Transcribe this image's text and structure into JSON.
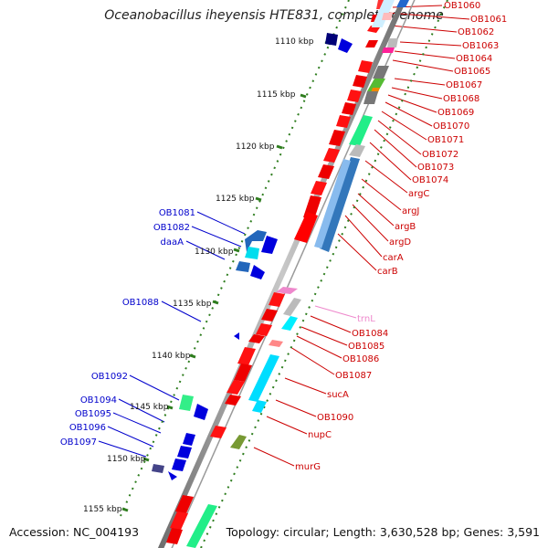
{
  "title": "Oceanobacillus iheyensis HTE831, complete genome",
  "accession": "Accession: NC_004193",
  "topology": "Topology: circular; Length: 3,630,528 bp; Genes: 3,591",
  "colors": {
    "backbone": "#8a8a8a",
    "tick": "#2e7d1e",
    "right_label": "#cc0000",
    "left_label": "#0000cc",
    "rna_label": "#ee88cc"
  },
  "ticks": [
    "1110 kbp",
    "1115 kbp",
    "1120 kbp",
    "1125 kbp",
    "1130 kbp",
    "1135 kbp",
    "1140 kbp",
    "1145 kbp",
    "1150 kbp",
    "1155 kbp"
  ],
  "right_labels": [
    "OB1060",
    "OB1061",
    "OB1062",
    "OB1063",
    "OB1064",
    "OB1065",
    "OB1067",
    "OB1068",
    "OB1069",
    "OB1070",
    "OB1071",
    "OB1072",
    "OB1073",
    "OB1074",
    "argC",
    "argJ",
    "argB",
    "argD",
    "carA",
    "carB",
    "trnL",
    "OB1084",
    "OB1085",
    "OB1086",
    "OB1087",
    "sucA",
    "OB1090",
    "nupC",
    "murG"
  ],
  "left_labels": [
    "OB1081",
    "OB1082",
    "daaA",
    "OB1088",
    "OB1092",
    "OB1094",
    "OB1095",
    "OB1096",
    "OB1097"
  ]
}
